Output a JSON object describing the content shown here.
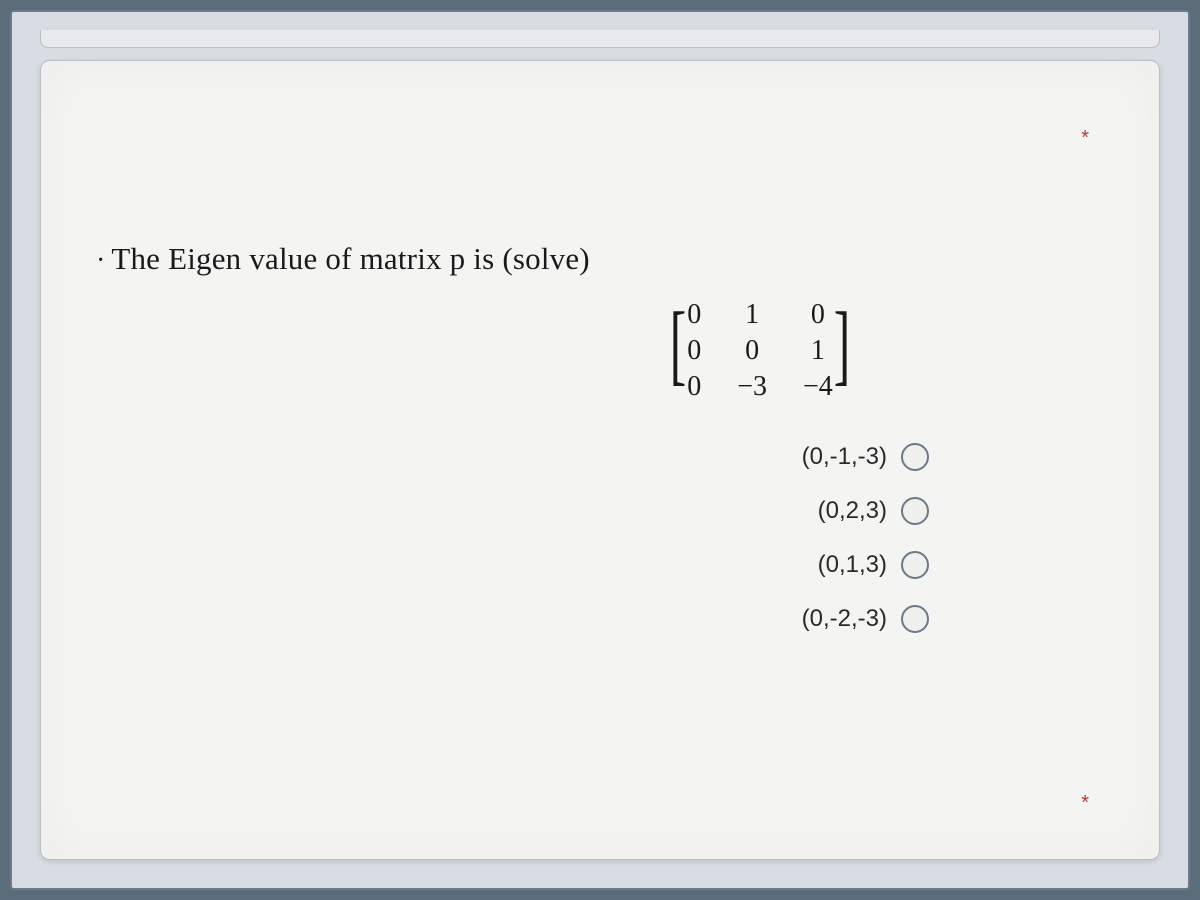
{
  "page": {
    "background_color": "#5a6c7a",
    "outer_background": "#d8dde3",
    "card_background": "#f4f4f2"
  },
  "question": {
    "bullet": "·",
    "text": "The Eigen value of matrix p  is  (solve)",
    "font_size": 31,
    "text_color": "#1a1a1a"
  },
  "matrix": {
    "rows": [
      [
        "0",
        "1",
        "0"
      ],
      [
        "0",
        "0",
        "1"
      ],
      [
        "0",
        "−3",
        "−4"
      ]
    ],
    "cell_font_size": 28,
    "column_gap": 36,
    "bracket_color": "#1a1a1a"
  },
  "options": [
    {
      "label": "(0,-1,-3)",
      "selected": false
    },
    {
      "label": "(0,2,3)",
      "selected": false
    },
    {
      "label": "(0,1,3)",
      "selected": false
    },
    {
      "label": "(0,-2,-3)",
      "selected": false
    }
  ],
  "option_style": {
    "font_size": 24,
    "text_color": "#2a2a2a",
    "radio_border": "#6b7b8a",
    "radio_size": 28
  },
  "markers": {
    "asterisk": "*",
    "color": "#b83a3a"
  }
}
